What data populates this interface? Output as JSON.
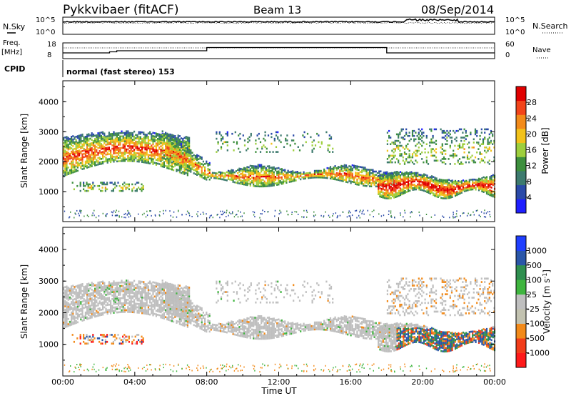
{
  "header": {
    "title": "Pykkvibaer (fitACF)",
    "beam": "Beam 13",
    "date": "08/Sep/2014"
  },
  "noise_panel": {
    "left_label": "N.Sky",
    "right_label": "N.Search",
    "left_ticks": [
      "10^5",
      "10^0"
    ],
    "right_ticks": [
      "10^5",
      "10^0"
    ]
  },
  "freq_panel": {
    "left_label_1": "Freq.",
    "left_label_2": "[MHz]",
    "right_label": "Nave",
    "left_ticks": [
      "18",
      "8"
    ],
    "right_ticks": [
      "60",
      "0"
    ]
  },
  "cpid_panel": {
    "label": "CPID",
    "text": "normal (fast stereo) 153"
  },
  "colors": {
    "power_scale": [
      "#1f1fff",
      "#2a4aa8",
      "#3d7a6e",
      "#3d8f3d",
      "#9ecf3d",
      "#f2c21a",
      "#f28a1a",
      "#f2441a",
      "#e00000"
    ],
    "velocity_scale": [
      "#ff1a1a",
      "#f23d1a",
      "#f28a1a",
      "#c2c2b0",
      "#bfbfbf",
      "#3fb53f",
      "#2f8f4f",
      "#2a56a8",
      "#1f3fff"
    ],
    "trace": "#000000"
  },
  "chart_data": [
    {
      "type": "heatmap",
      "title": "Power",
      "ylabel": "Slant Range [km]",
      "yticks": [
        "1000",
        "2000",
        "3000",
        "4000"
      ],
      "ylim": [
        0,
        4700
      ],
      "xlim_hours": [
        0,
        24
      ],
      "xticks": [
        "00:00",
        "04:00",
        "08:00",
        "12:00",
        "16:00",
        "20:00",
        "00:00"
      ],
      "xlabel": "Time UT",
      "colorbar": {
        "label": "Power [dB]",
        "ticks": [
          "4",
          "8",
          "12",
          "16",
          "20",
          "24",
          "28"
        ]
      }
    },
    {
      "type": "heatmap",
      "title": "Velocity",
      "ylabel": "Slant Range [km]",
      "yticks": [
        "1000",
        "2000",
        "3000",
        "4000"
      ],
      "ylim": [
        0,
        4700
      ],
      "xlim_hours": [
        0,
        24
      ],
      "xticks": [
        "00:00",
        "04:00",
        "08:00",
        "12:00",
        "16:00",
        "20:00",
        "00:00"
      ],
      "xlabel": "Time UT",
      "colorbar": {
        "label": "Velocity [m s",
        "label_sup": "-1",
        "label_end": "]",
        "ticks": [
          "1000",
          "500",
          "100",
          "25",
          "-25",
          "-100",
          "-500",
          "-1000"
        ]
      }
    }
  ]
}
